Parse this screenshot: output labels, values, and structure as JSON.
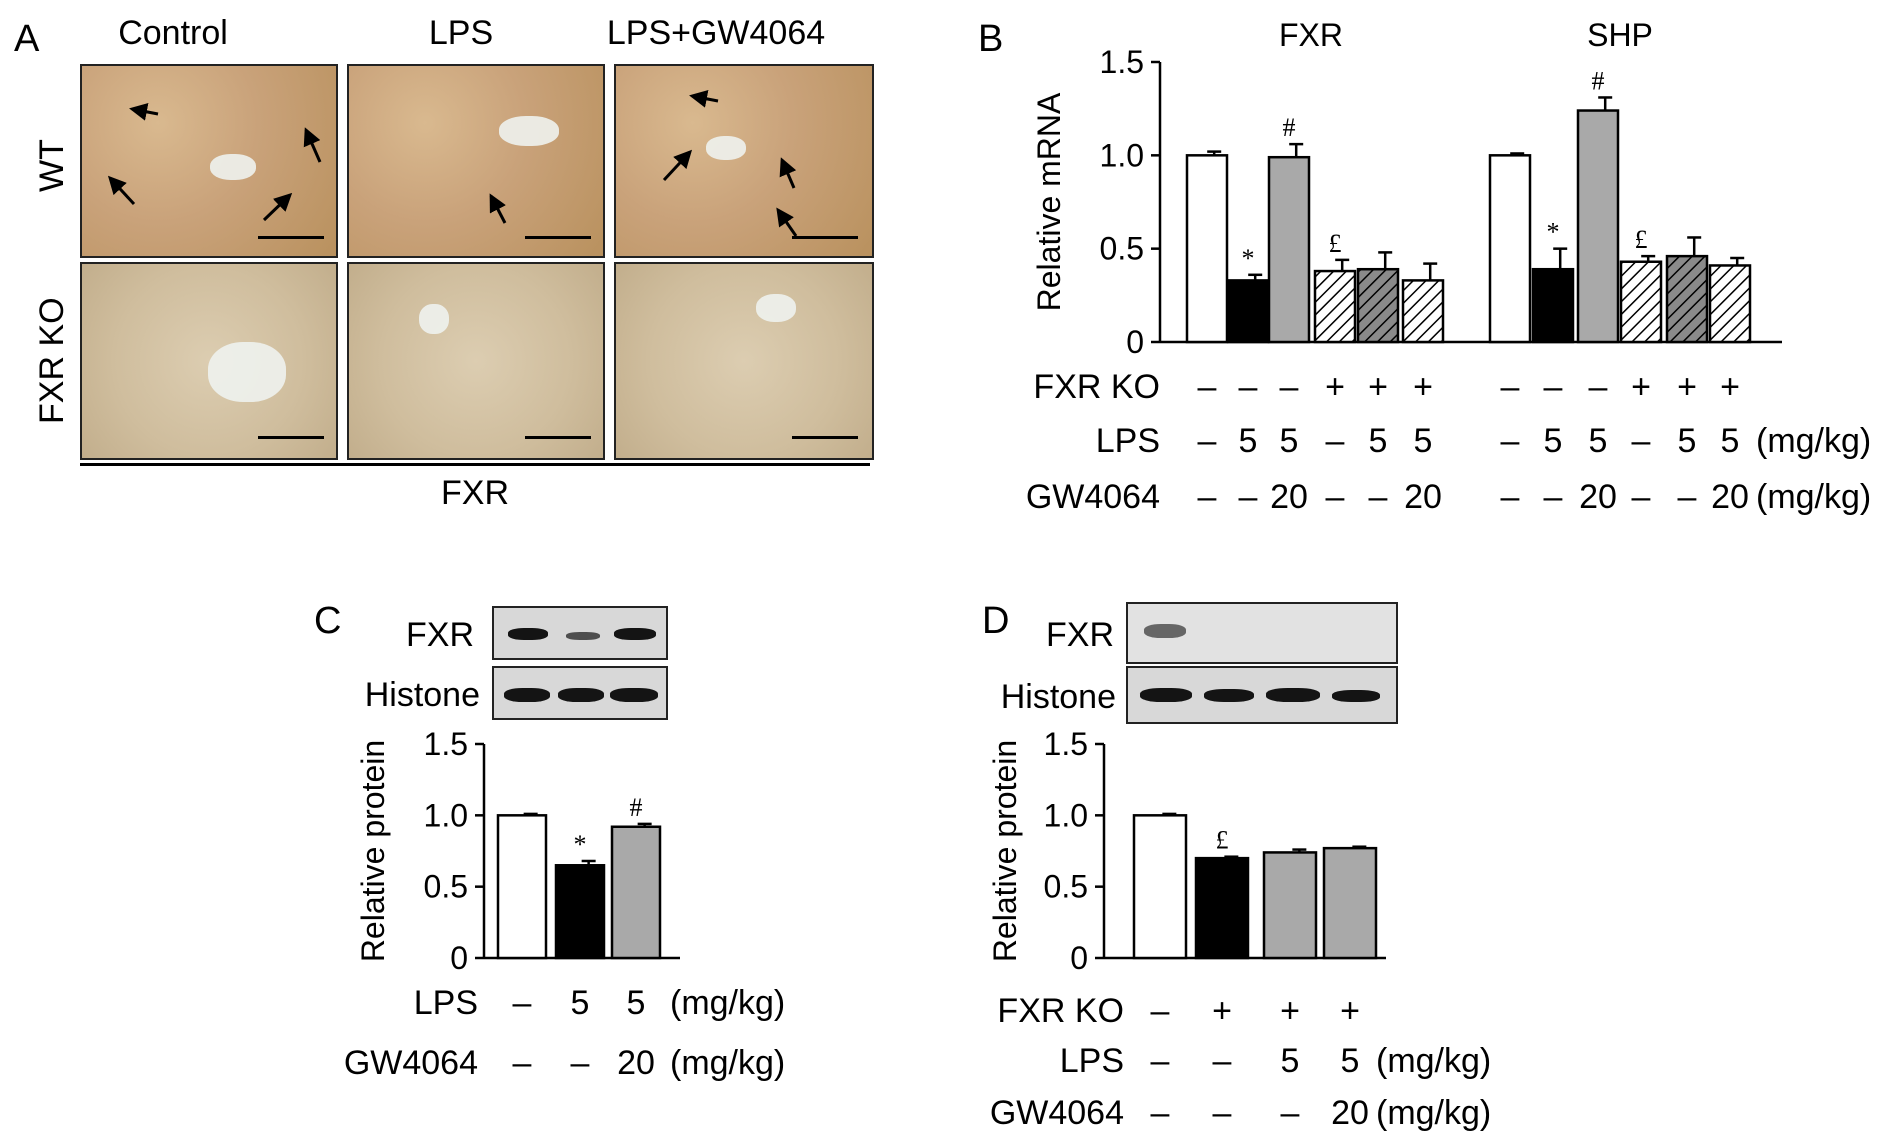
{
  "panel_a": {
    "letter": "A",
    "columns": [
      "Control",
      "LPS",
      "LPS+GW4064"
    ],
    "rows": [
      "WT",
      "FXR KO"
    ],
    "footer": "FXR"
  },
  "panel_b": {
    "letter": "B",
    "row_labels": [
      "FXR KO",
      "LPS",
      "GW4064"
    ],
    "fxr_ko_values": [
      "–",
      "–",
      "–",
      "+",
      "+",
      "+"
    ],
    "lps_values": [
      "–",
      "5",
      "5",
      "–",
      "5",
      "5"
    ],
    "gw_values": [
      "–",
      "–",
      "20",
      "–",
      "–",
      "20"
    ],
    "unit_lps": "(mg/kg)",
    "unit_gw": "(mg/kg)"
  },
  "panel_c": {
    "letter": "C",
    "blot_labels": [
      "FXR",
      "Histone"
    ],
    "row_labels": [
      "LPS",
      "GW4064"
    ],
    "lps_values": [
      "–",
      "5",
      "5"
    ],
    "gw_values": [
      "–",
      "–",
      "20"
    ],
    "unit_lps": "(mg/kg)",
    "unit_gw": "(mg/kg)"
  },
  "panel_d": {
    "letter": "D",
    "blot_labels": [
      "FXR",
      "Histone"
    ],
    "row_labels": [
      "FXR KO",
      "LPS",
      "GW4064"
    ],
    "fxr_ko_values": [
      "–",
      "+",
      "+",
      "+"
    ],
    "lps_values": [
      "–",
      "–",
      "5",
      "5"
    ],
    "gw_values": [
      "–",
      "–",
      "–",
      "20"
    ],
    "unit_lps": "(mg/kg)",
    "unit_gw": "(mg/kg)"
  },
  "chart_data": [
    {
      "id": "B",
      "type": "bar",
      "ylabel": "Relative mRNA",
      "ylim": [
        0,
        1.5
      ],
      "yticks": [
        "0",
        "0.5",
        "1.0",
        "1.5"
      ],
      "groups": [
        {
          "name": "FXR",
          "values": [
            1.0,
            0.33,
            0.99,
            0.38,
            0.39,
            0.33
          ],
          "errors": [
            0.02,
            0.03,
            0.07,
            0.06,
            0.09,
            0.09
          ],
          "marks": [
            "",
            "*",
            "#",
            "£",
            "",
            ""
          ]
        },
        {
          "name": "SHP",
          "values": [
            1.0,
            0.39,
            1.24,
            0.43,
            0.46,
            0.41
          ],
          "errors": [
            0.01,
            0.11,
            0.07,
            0.03,
            0.1,
            0.04
          ],
          "marks": [
            "",
            "*",
            "#",
            "£",
            "",
            ""
          ]
        }
      ],
      "fills": [
        "#ffffff",
        "#000000",
        "#a9a9a9",
        "hatch-light",
        "hatch-dark",
        "hatch-light"
      ]
    },
    {
      "id": "C",
      "type": "bar",
      "ylabel": "Relative protein",
      "ylim": [
        0,
        1.5
      ],
      "yticks": [
        "0",
        "0.5",
        "1.0",
        "1.5"
      ],
      "values": [
        1.0,
        0.65,
        0.92
      ],
      "errors": [
        0.01,
        0.03,
        0.02
      ],
      "marks": [
        "",
        "*",
        "#"
      ],
      "fills": [
        "#ffffff",
        "#000000",
        "#a9a9a9"
      ]
    },
    {
      "id": "D",
      "type": "bar",
      "ylabel": "Relative protein",
      "ylim": [
        0,
        1.5
      ],
      "yticks": [
        "0",
        "0.5",
        "1.0",
        "1.5"
      ],
      "values": [
        1.0,
        0.7,
        0.74,
        0.77
      ],
      "errors": [
        0.01,
        0.01,
        0.02,
        0.01
      ],
      "marks": [
        "",
        "£",
        "",
        ""
      ],
      "fills": [
        "#ffffff",
        "#000000",
        "#a9a9a9",
        "#a9a9a9"
      ]
    }
  ]
}
